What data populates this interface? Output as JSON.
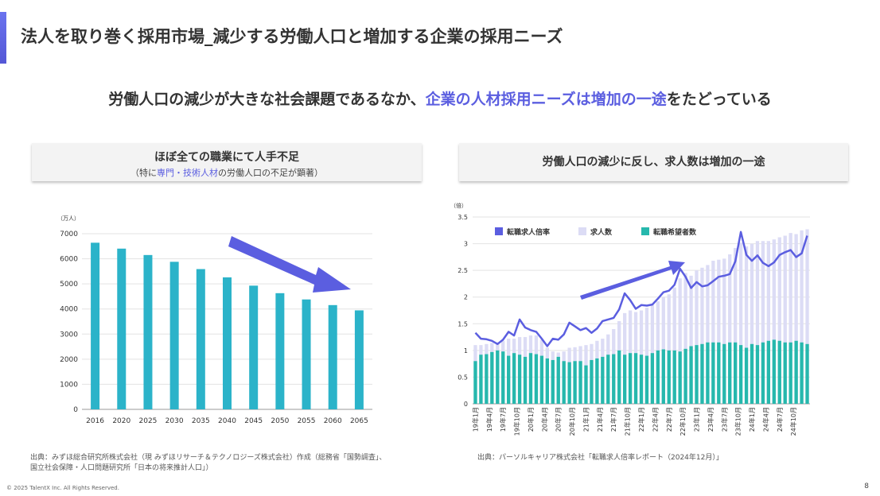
{
  "header": {
    "title": "法人を取り巻く採用市場_減少する労働人口と増加する企業の採用ニーズ",
    "subtitle_pre": "労働人口の減少が大きな社会課題であるなか、",
    "subtitle_hl": "企業の人材採用ニーズは増加の一途",
    "subtitle_post": "をたどっている"
  },
  "left_box": {
    "heading": "ほぼ全ての職業にて人手不足",
    "sub_pre": "（特に",
    "sub_hl": "専門・技術人材",
    "sub_post": "の労働人口の不足が顕著）"
  },
  "right_box": {
    "heading": "労働人口の減少に反し、求人数は増加の一途"
  },
  "colors": {
    "accent": "#5b5ee0",
    "bar": "#2bb3c9",
    "seekers": "#26b8ad",
    "openings": "#dcdcf5",
    "ratio": "#5b5ee0"
  },
  "chart_data": [
    {
      "type": "bar",
      "unit_label": "（万人）",
      "categories": [
        "2016",
        "2020",
        "2025",
        "2030",
        "2035",
        "2040",
        "2045",
        "2050",
        "2055",
        "2060",
        "2065"
      ],
      "values": [
        6640,
        6405,
        6150,
        5880,
        5590,
        5260,
        4930,
        4630,
        4380,
        4155,
        3945
      ],
      "ylim": [
        0,
        7000
      ],
      "yticks": [
        0,
        1000,
        2000,
        3000,
        4000,
        5000,
        6000,
        7000
      ]
    },
    {
      "type": "bar+line",
      "unit_label": "（倍）",
      "ylim": [
        0,
        3.5
      ],
      "yticks": [
        "0",
        "0.5",
        "1",
        "1.5",
        "2",
        "2.5",
        "3",
        "3.5"
      ],
      "legend": [
        "転職求人倍率",
        "求人数",
        "転職希望者数"
      ],
      "x_tick_labels": [
        "19年1月",
        "19年4月",
        "19年7月",
        "19年10月",
        "20年1月",
        "20年4月",
        "20年7月",
        "20年10月",
        "21年1月",
        "21年4月",
        "21年7月",
        "21年10月",
        "22年1月",
        "22年4月",
        "22年7月",
        "22年10月",
        "23年1月",
        "23年4月",
        "23年7月",
        "23年10月",
        "24年1月",
        "24年4月",
        "24年7月",
        "24年10月"
      ],
      "series": [
        {
          "name": "転職求人倍率",
          "values": [
            1.33,
            1.22,
            1.21,
            1.18,
            1.12,
            1.2,
            1.35,
            1.28,
            1.58,
            1.43,
            1.38,
            1.35,
            1.22,
            1.08,
            1.22,
            1.2,
            1.3,
            1.52,
            1.45,
            1.38,
            1.42,
            1.33,
            1.41,
            1.55,
            1.58,
            1.61,
            1.77,
            2.07,
            1.94,
            1.78,
            1.85,
            1.84,
            1.86,
            1.97,
            2.09,
            2.12,
            2.23,
            2.53,
            2.38,
            2.17,
            2.28,
            2.2,
            2.22,
            2.3,
            2.38,
            2.4,
            2.43,
            2.67,
            3.22,
            2.79,
            2.68,
            2.78,
            2.64,
            2.58,
            2.65,
            2.79,
            2.84,
            2.88,
            2.75,
            2.82,
            3.15
          ]
        },
        {
          "name": "求人数",
          "values": [
            1.1,
            1.1,
            1.12,
            1.14,
            1.15,
            1.18,
            1.22,
            1.22,
            1.25,
            1.25,
            1.28,
            1.28,
            1.2,
            1.05,
            0.98,
            0.96,
            0.98,
            1.05,
            1.06,
            1.08,
            1.1,
            1.12,
            1.18,
            1.22,
            1.3,
            1.4,
            1.55,
            1.7,
            1.75,
            1.72,
            1.75,
            1.8,
            1.85,
            1.92,
            2.0,
            2.05,
            2.18,
            2.35,
            2.45,
            2.4,
            2.5,
            2.55,
            2.6,
            2.68,
            2.7,
            2.72,
            2.8,
            2.92,
            3.02,
            2.95,
            3.0,
            3.05,
            3.05,
            3.05,
            3.08,
            3.12,
            3.15,
            3.2,
            3.18,
            3.25,
            3.27
          ]
        },
        {
          "name": "転職希望者数",
          "values": [
            0.8,
            0.92,
            0.93,
            0.97,
            1.0,
            0.98,
            0.9,
            0.95,
            0.92,
            0.88,
            0.95,
            0.93,
            0.9,
            0.85,
            0.82,
            0.88,
            0.8,
            0.78,
            0.8,
            0.8,
            0.72,
            0.82,
            0.85,
            0.88,
            0.92,
            0.93,
            1.0,
            0.92,
            0.95,
            0.95,
            0.92,
            0.9,
            0.95,
            1.0,
            1.02,
            1.0,
            1.0,
            0.98,
            1.03,
            1.08,
            1.1,
            1.12,
            1.15,
            1.15,
            1.15,
            1.12,
            1.15,
            1.15,
            1.1,
            1.05,
            1.12,
            1.1,
            1.15,
            1.18,
            1.2,
            1.18,
            1.15,
            1.15,
            1.18,
            1.15,
            1.12
          ]
        }
      ]
    }
  ],
  "sources": {
    "left_line1": "出典：みずほ総合研究所株式会社（現 みずほリサーチ＆テクノロジーズ株式会社）作成（総務省「国勢調査」、",
    "left_line2": "国立社会保障・人口問題研究所「日本の将来推計人口」）",
    "right": "出典：パーソルキャリア株式会社「転職求人倍率レポート（2024年12月）」"
  },
  "footer": {
    "copyright": "© 2025 TalentX Inc. All Rights Reserved.",
    "page": "8"
  }
}
